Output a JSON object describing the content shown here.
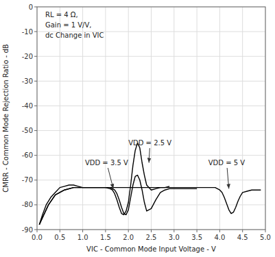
{
  "chart_data": {
    "type": "line",
    "xlabel": "VIC - Common Mode Input Voltage - V",
    "ylabel": "CMRR - Common Mode Rejection Ratio - dB",
    "xlim": [
      0,
      5
    ],
    "ylim": [
      -90,
      0
    ],
    "xticks": [
      {
        "value": 0,
        "label": "0.0"
      },
      0.5,
      {
        "value": 1,
        "label": "1.0"
      },
      1.5,
      {
        "value": 2,
        "label": "2.0"
      },
      2.5,
      {
        "value": 3,
        "label": "3.0"
      },
      3.5,
      {
        "value": 4,
        "label": "4.0"
      },
      4.5,
      {
        "value": 5,
        "label": "5.0"
      }
    ],
    "yticks": [
      0,
      -10,
      -20,
      -30,
      -40,
      -50,
      -60,
      -70,
      -80,
      -90
    ],
    "grid": true,
    "series": [
      {
        "color": "#000000",
        "x": [
          0.05,
          0.12,
          0.2,
          0.3,
          0.4,
          0.5,
          0.6,
          0.7,
          0.8,
          0.9,
          1.0,
          1.1,
          1.2,
          1.3,
          1.4,
          1.5,
          1.6,
          1.65,
          1.7,
          1.75,
          1.8,
          1.85,
          1.9,
          1.95,
          2.0,
          2.05,
          2.1,
          2.15,
          2.2,
          2.25,
          2.3,
          2.35,
          2.4,
          2.5,
          2.6,
          2.7,
          2.8,
          2.9,
          3.0,
          3.1,
          3.2,
          3.5
        ],
        "values": [
          -88,
          -84,
          -80,
          -77,
          -75,
          -73,
          -72.5,
          -72,
          -72,
          -72.5,
          -73,
          -73,
          -73,
          -73,
          -73,
          -73,
          -73,
          -73.5,
          -74,
          -75.5,
          -78,
          -81,
          -83.5,
          -84,
          -82,
          -77,
          -72,
          -68.5,
          -68,
          -70,
          -74,
          -79,
          -82.5,
          -81.5,
          -78,
          -75,
          -74,
          -73.5,
          -73.5,
          -73.5,
          -73.5,
          -73.5
        ]
      },
      {
        "color": "#000000",
        "x": [
          0.05,
          0.15,
          0.25,
          0.4,
          0.6,
          0.8,
          1.0,
          1.2,
          1.4,
          1.5,
          1.6,
          1.65,
          1.7,
          1.75,
          1.8,
          1.85,
          1.9,
          1.95,
          2.0,
          2.05,
          2.1,
          2.15,
          2.2,
          2.25,
          2.3,
          2.35,
          2.4,
          2.5,
          2.6,
          2.7,
          2.8,
          2.9
        ],
        "values": [
          -88,
          -84,
          -80,
          -76,
          -74,
          -73,
          -73,
          -73,
          -73,
          -73,
          -73.5,
          -74,
          -75.5,
          -78,
          -81,
          -83.5,
          -84,
          -82.5,
          -79,
          -72,
          -64,
          -58,
          -55,
          -57,
          -63,
          -68,
          -72,
          -74,
          -73.5,
          -73,
          -73,
          -72.5
        ]
      },
      {
        "color": "#000000",
        "x": [
          0.05,
          0.15,
          0.25,
          0.4,
          0.6,
          0.8,
          1.0,
          1.5,
          2.0,
          2.5,
          3.0,
          3.2,
          3.4,
          3.6,
          3.8,
          3.9,
          3.95,
          4.0,
          4.05,
          4.1,
          4.15,
          4.2,
          4.25,
          4.3,
          4.35,
          4.4,
          4.45,
          4.5,
          4.6,
          4.7,
          4.8,
          4.9
        ],
        "values": [
          -88,
          -84,
          -80,
          -76,
          -74,
          -73,
          -73,
          -73,
          -73,
          -73,
          -73,
          -73,
          -73,
          -73,
          -73,
          -73,
          -73.5,
          -74,
          -75,
          -77,
          -79.5,
          -82,
          -83.5,
          -83,
          -81,
          -78.5,
          -76.5,
          -75,
          -74.5,
          -74,
          -74,
          -74
        ]
      }
    ],
    "annotations": [
      {
        "text": "VDD = 3.5 V",
        "x": 1.05,
        "y": -63,
        "arrow_x": 1.67,
        "arrow_y": -73.5
      },
      {
        "text": "VDD = 2.5 V",
        "x": 2.0,
        "y": -55,
        "arrow_x": 2.45,
        "arrow_y": -63
      },
      {
        "text": "VDD = 5 V",
        "x": 3.75,
        "y": -63,
        "arrow_x": 4.2,
        "arrow_y": -73.5
      },
      {
        "text": [
          "RL = 4 Ω,",
          "Gain = 1 V/V,",
          "dc Change in VIC"
        ],
        "x": 0.18,
        "y": -1.5
      }
    ]
  }
}
